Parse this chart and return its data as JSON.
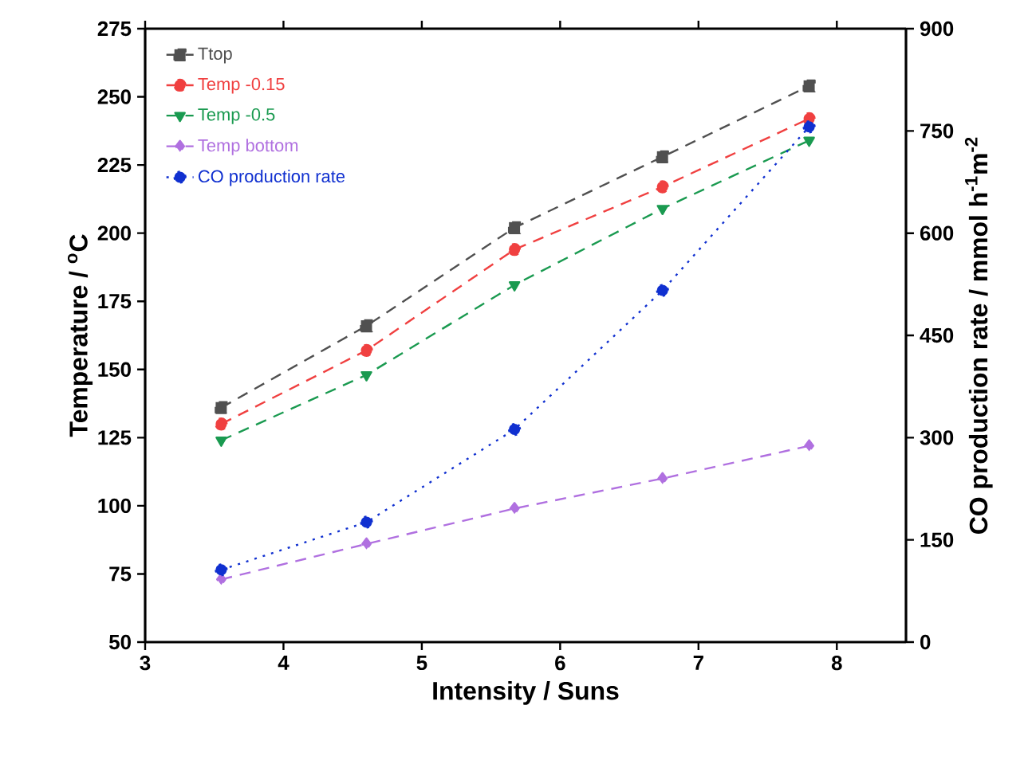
{
  "chart_data": {
    "type": "line",
    "xlabel": "Intensity / Suns",
    "ylabel": "Temperature / $^{o}$C",
    "y2label": "CO production rate / mmol h$^{-1}$m$^{-2}$",
    "x": [
      3.55,
      4.6,
      5.67,
      6.74,
      7.8
    ],
    "series": [
      {
        "name": "Ttop",
        "color": "#505050",
        "marker": "square",
        "line_style": "dashed",
        "values": [
          136,
          166,
          202,
          228,
          254
        ]
      },
      {
        "name": "Temp -0.15",
        "color": "#f04040",
        "marker": "circle",
        "line_style": "dashed",
        "values": [
          130,
          157,
          194,
          217,
          242
        ]
      },
      {
        "name": "Temp -0.5",
        "color": "#1a9a50",
        "marker": "triangle",
        "line_style": "dashed",
        "values": [
          124,
          148,
          181,
          209,
          234
        ]
      },
      {
        "name": "Temp  bottom",
        "color": "#b070e0",
        "marker": "diamond",
        "line_style": "dashed",
        "values": [
          73,
          86,
          99,
          110,
          122
        ]
      },
      {
        "name": "CO production rate",
        "color": "#1030d0",
        "marker": "circle",
        "line_style": "dotted",
        "axis": "y2",
        "values": [
          106,
          176,
          312,
          516,
          756
        ]
      }
    ],
    "xlim": [
      3,
      8.5
    ],
    "xticks": [
      3,
      4,
      5,
      6,
      7,
      8
    ],
    "ylim": [
      50,
      275
    ],
    "yticks": [
      50,
      75,
      100,
      125,
      150,
      175,
      200,
      225,
      250,
      275
    ],
    "y2lim": [
      0,
      900
    ],
    "y2ticks": [
      0,
      150,
      300,
      450,
      600,
      750,
      900
    ],
    "legend": "top left",
    "grid": false
  }
}
